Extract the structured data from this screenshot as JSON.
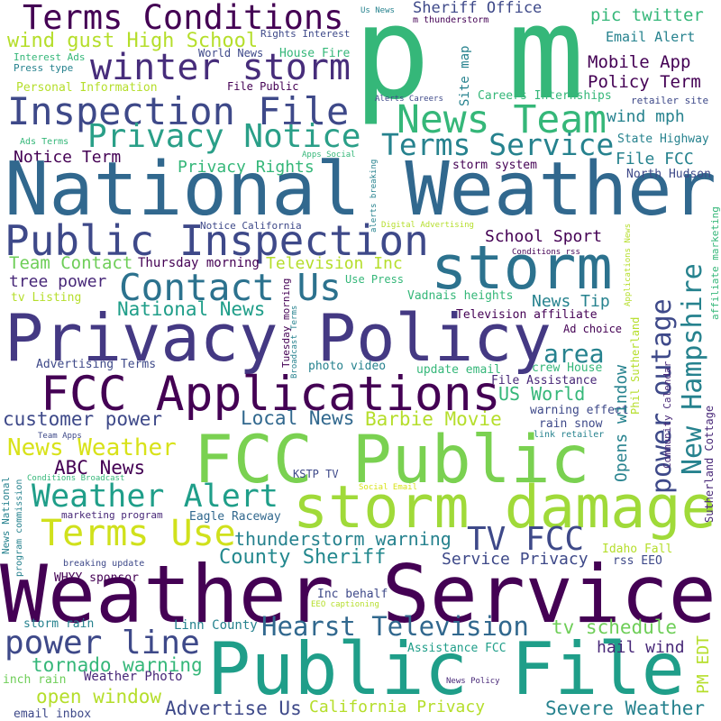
{
  "words": [
    "p m",
    "Terms Conditions",
    "wind gust High School",
    "winter storm",
    "Inspection File",
    "Privacy Notice",
    "Notice Term",
    "Privacy Rights",
    "National Weather",
    "Public Inspection",
    "storm",
    "Contact Us",
    "Team Contact",
    "Thursday morning",
    "Television Inc",
    "tree power",
    "tv Listing",
    "Use Press",
    "National News",
    "Privacy Policy",
    "FCC Applications",
    "Advertising Terms",
    "customer power",
    "Local News",
    "Barbie Movie",
    "News Weather",
    "FCC Public",
    "ABC News",
    "Weather Alert",
    "storm damage",
    "Terms Use",
    "thunderstorm warning",
    "TV FCC",
    "County Sheriff",
    "Service Privacy",
    "Weather Service",
    "Public File",
    "Hearst Television",
    "power line",
    "tornado warning",
    "open window",
    "Advertise Us",
    "California Privacy",
    "Severe Weather",
    "tv schedule",
    "Assistance FCC",
    "hail wind",
    "Linn County",
    "Inc behalf",
    "EEO captioning",
    "storm rain",
    "inch rain",
    "Weather Photo",
    "email inbox",
    "News Policy",
    "Idaho Fall",
    "rss EEO",
    "WHYY sponsor",
    "breaking update",
    "marketing program",
    "Eagle Raceway",
    "KSTP TV",
    "Social Email",
    "Team Apps",
    "Conditions Broadcast",
    "News National",
    "program commission",
    "photo video",
    "update email",
    "File Assistance",
    "crew House",
    "US World",
    "warning effect",
    "rain snow",
    "link retailer",
    "Ad choice",
    "area",
    "Television affiliate",
    "News Tip",
    "Vadnais heights",
    "School Sport",
    "Conditions rss",
    "Digital Advertising",
    "Notice California",
    "Terms Service",
    "News Team",
    "File FCC",
    "State Highway",
    "North Hudson",
    "storm system",
    "Careers Internships",
    "Policy Term",
    "Mobile App",
    "Email Alert",
    "pic twitter",
    "retailer site",
    "wind mph",
    "Sheriff Office",
    "m thunderstorm",
    "Us News",
    "Rights Interest",
    "World News",
    "House Fire",
    "Interest Ads",
    "Press type",
    "Personal Information",
    "File Public",
    "Alerts Careers",
    "Ads Terms",
    "Apps Social",
    "Site map",
    "alerts breaking",
    "Broadcast Terms",
    "Tuesday morning",
    "power outage",
    "New Hampshire",
    "Opens window",
    "Phil Sutherland",
    "Applications News",
    "affiliate marketing",
    "Community Calendar",
    "Sutherland Cottage",
    "PM EDT"
  ]
}
